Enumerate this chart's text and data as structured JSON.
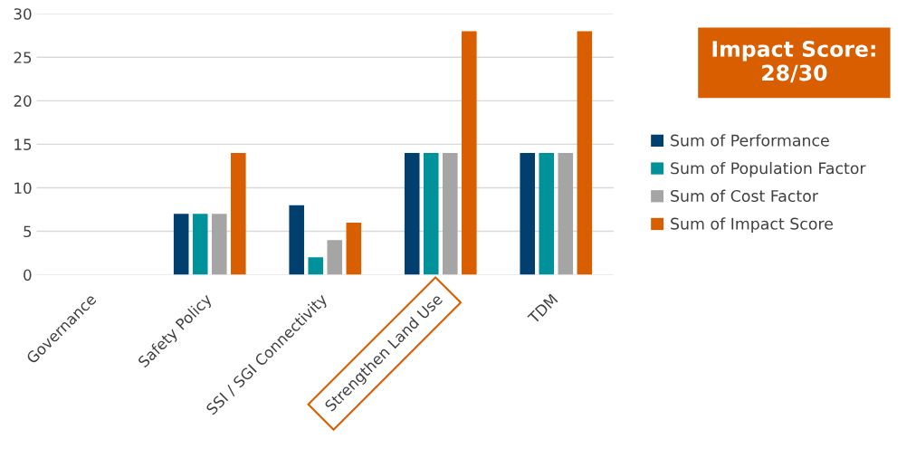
{
  "chart_data": {
    "type": "bar",
    "categories": [
      "Governance",
      "Safety Policy",
      "SSI / SGI Connectivity",
      "Strengthen Land Use",
      "TDM"
    ],
    "series": [
      {
        "name": "Sum of Performance",
        "color": "#003f6e",
        "values": [
          0,
          7,
          8,
          14,
          14
        ]
      },
      {
        "name": "Sum of Population Factor",
        "color": "#00929a",
        "values": [
          0,
          7,
          2,
          14,
          14
        ]
      },
      {
        "name": "Sum of Cost Factor",
        "color": "#a5a5a5",
        "values": [
          0,
          7,
          4,
          14,
          14
        ]
      },
      {
        "name": "Sum of Impact Score",
        "color": "#d95e00",
        "values": [
          0,
          14,
          6,
          28,
          28
        ]
      }
    ],
    "ylim": [
      0,
      30
    ],
    "yticks": [
      0,
      5,
      10,
      15,
      20,
      25,
      30
    ],
    "grid": "y",
    "legend": "right",
    "annotations": [
      "Impact Score:\n28/30"
    ]
  }
}
